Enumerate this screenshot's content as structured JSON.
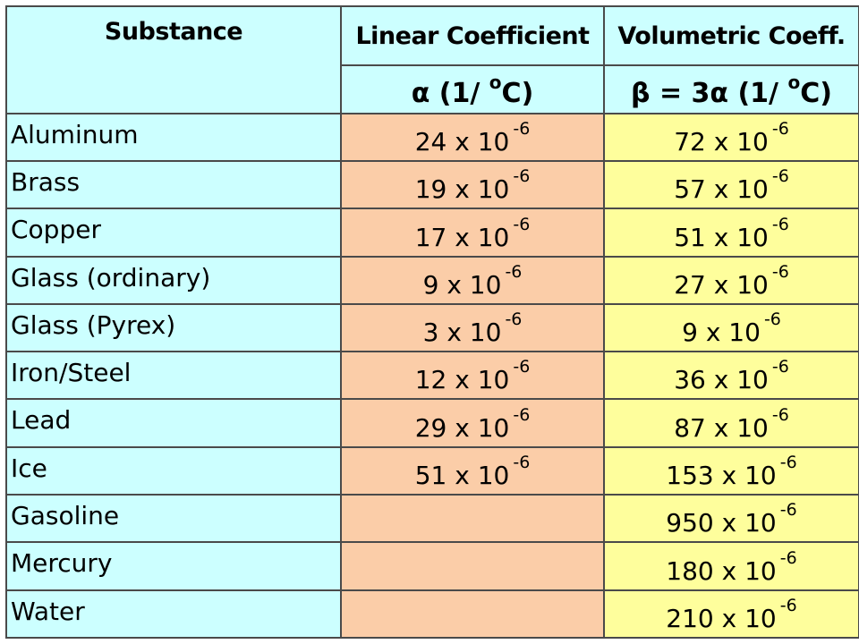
{
  "header": {
    "substance": "Substance",
    "linear": "Linear Coefficient",
    "volumetric": "Volumetric Coeff.",
    "linear_unit_symbol": "α",
    "linear_unit_text": "(1/ ",
    "volumetric_unit_symbol": "β = 3α",
    "volumetric_unit_text": "(1/ ",
    "degree": "o",
    "celsius": "C)"
  },
  "colors": {
    "substance_bg": "#ccffff",
    "linear_bg": "#fbcda8",
    "volumetric_bg": "#fefe9c",
    "border": "#4a4a4a"
  },
  "rows": [
    {
      "substance": "Aluminum",
      "linear": "24 x 10",
      "linear_exp": "-6",
      "volumetric": "72 x 10",
      "volumetric_exp": "-6"
    },
    {
      "substance": "Brass",
      "linear": "19 x 10",
      "linear_exp": "-6",
      "volumetric": "57 x 10",
      "volumetric_exp": "-6"
    },
    {
      "substance": "Copper",
      "linear": "17 x 10",
      "linear_exp": "-6",
      "volumetric": "51 x 10",
      "volumetric_exp": "-6"
    },
    {
      "substance": "Glass (ordinary)",
      "linear": "9 x 10",
      "linear_exp": "-6",
      "volumetric": "27 x 10",
      "volumetric_exp": "-6"
    },
    {
      "substance": "Glass (Pyrex)",
      "linear": "3 x 10",
      "linear_exp": "-6",
      "volumetric": "9 x 10",
      "volumetric_exp": "-6"
    },
    {
      "substance": "Iron/Steel",
      "linear": "12 x 10",
      "linear_exp": "-6",
      "volumetric": "36 x 10",
      "volumetric_exp": "-6"
    },
    {
      "substance": "Lead",
      "linear": "29 x 10",
      "linear_exp": "-6",
      "volumetric": "87 x 10",
      "volumetric_exp": "-6"
    },
    {
      "substance": "Ice",
      "linear": "51 x 10",
      "linear_exp": "-6",
      "volumetric": "153 x 10",
      "volumetric_exp": "-6"
    },
    {
      "substance": "Gasoline",
      "linear": "",
      "linear_exp": "",
      "volumetric": "950 x 10",
      "volumetric_exp": "-6"
    },
    {
      "substance": "Mercury",
      "linear": "",
      "linear_exp": "",
      "volumetric": "180 x 10",
      "volumetric_exp": "-6"
    },
    {
      "substance": "Water",
      "linear": "",
      "linear_exp": "",
      "volumetric": "210 x 10",
      "volumetric_exp": "-6"
    }
  ]
}
